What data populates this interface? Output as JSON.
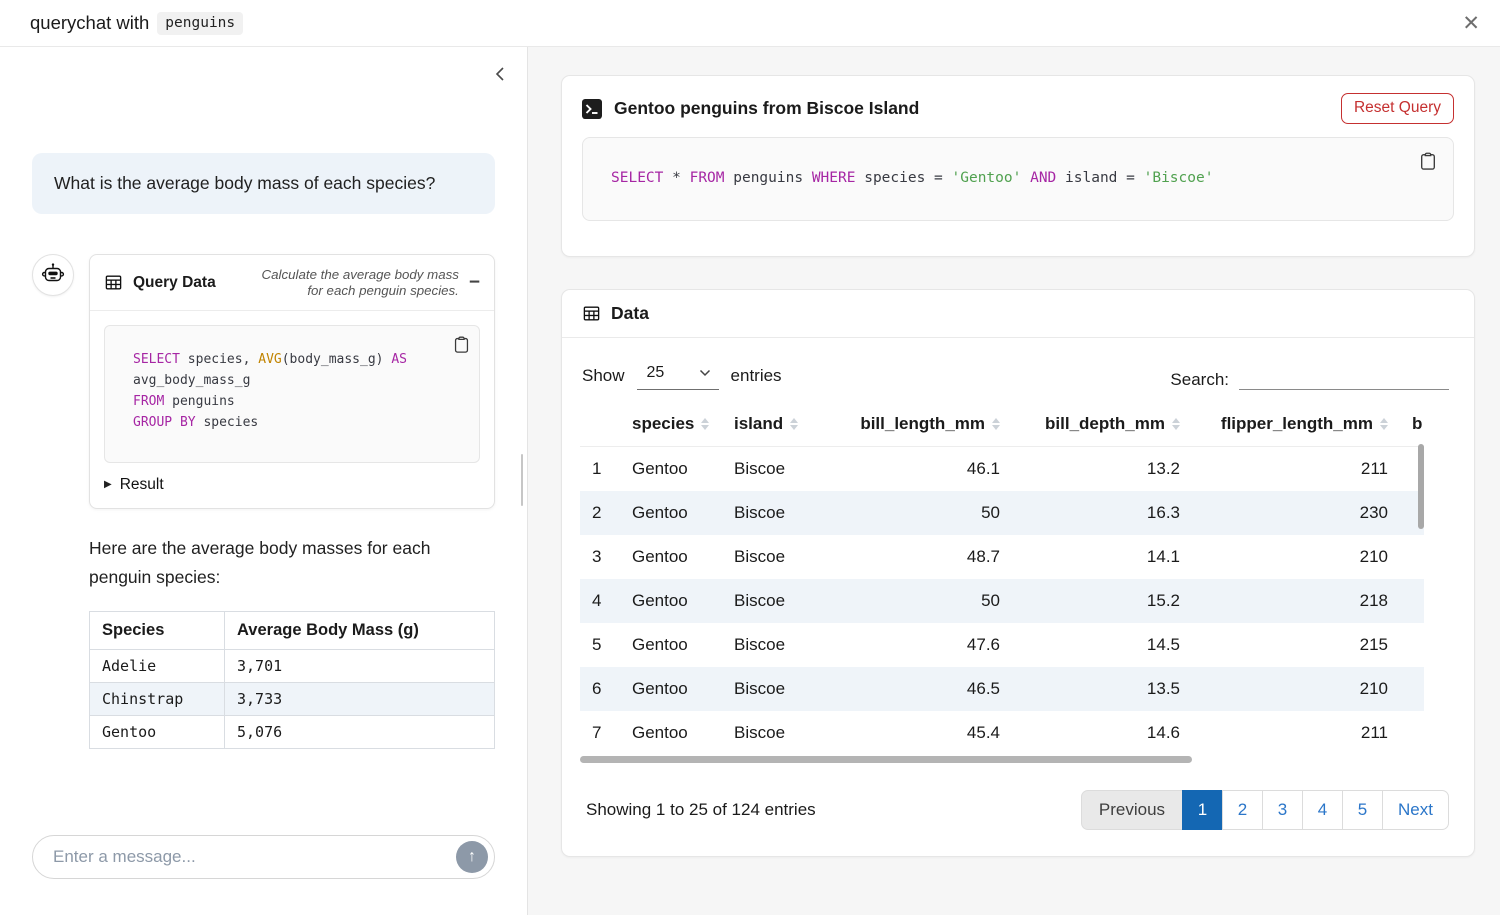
{
  "header": {
    "title_prefix": "querychat with",
    "title_code": "penguins"
  },
  "icons": {
    "close": "✕",
    "tool_collapse": "−",
    "result_caret": "▶",
    "send": "↑",
    "sidebar_collapse": "chevron-left-icon",
    "robot": "robot-icon",
    "table_grid": "table-icon",
    "terminal": "terminal-icon",
    "clipboard": "copy-icon",
    "sort": "sort-arrows-icon",
    "select_chevron": "chevron-down-icon"
  },
  "colors": {
    "accent_blue": "#1467b3",
    "link_blue": "#2b76c9",
    "reset_red": "#c53030",
    "sql_keyword": "#a626a4",
    "sql_function": "#c18401",
    "sql_string": "#50a14f",
    "row_stripe": "#eff4f9",
    "user_bubble": "#edf3f9"
  },
  "sidebar": {
    "user_message": "What is the average body mass of each species?",
    "tool_card": {
      "title": "Query Data",
      "subtitle": "Calculate the average body mass for each penguin species.",
      "sql_tokens": [
        {
          "t": "SELECT",
          "c": "kw"
        },
        {
          "t": " species, ",
          "c": ""
        },
        {
          "t": "AVG",
          "c": "fn"
        },
        {
          "t": "(body_mass_g) ",
          "c": ""
        },
        {
          "t": "AS",
          "c": "kw"
        },
        {
          "t": "\navg_body_mass_g\n",
          "c": ""
        },
        {
          "t": "FROM",
          "c": "kw"
        },
        {
          "t": " penguins\n",
          "c": ""
        },
        {
          "t": "GROUP BY",
          "c": "kw"
        },
        {
          "t": " species",
          "c": ""
        }
      ],
      "result_label": "Result"
    },
    "assistant_text": "Here are the average body masses for each penguin species:",
    "result_table": {
      "headers": [
        "Species",
        "Average Body Mass (g)"
      ],
      "rows": [
        [
          "Adelie",
          "3,701"
        ],
        [
          "Chinstrap",
          "3,733"
        ],
        [
          "Gentoo",
          "5,076"
        ]
      ]
    },
    "input": {
      "placeholder": "Enter a message..."
    }
  },
  "main": {
    "query_card": {
      "title": "Gentoo penguins from Biscoe Island",
      "reset_label": "Reset Query",
      "sql_tokens": [
        {
          "t": "SELECT",
          "c": "kw"
        },
        {
          "t": " * ",
          "c": ""
        },
        {
          "t": "FROM",
          "c": "kw"
        },
        {
          "t": " penguins ",
          "c": ""
        },
        {
          "t": "WHERE",
          "c": "kw"
        },
        {
          "t": " species = ",
          "c": ""
        },
        {
          "t": "'Gentoo'",
          "c": "str"
        },
        {
          "t": " ",
          "c": ""
        },
        {
          "t": "AND",
          "c": "kw"
        },
        {
          "t": " island = ",
          "c": ""
        },
        {
          "t": "'Biscoe'",
          "c": "str"
        }
      ]
    },
    "data_card": {
      "title": "Data",
      "show_label": "Show",
      "page_size": "25",
      "entries_label": "entries",
      "search_label": "Search:",
      "search_value": "",
      "table": {
        "columns": [
          {
            "label": "",
            "align": "left",
            "sortable": false
          },
          {
            "label": "species",
            "align": "left",
            "sortable": true
          },
          {
            "label": "island",
            "align": "left",
            "sortable": true
          },
          {
            "label": "bill_length_mm",
            "align": "right",
            "sortable": true
          },
          {
            "label": "bill_depth_mm",
            "align": "right",
            "sortable": true
          },
          {
            "label": "flipper_length_mm",
            "align": "right",
            "sortable": true
          },
          {
            "label": "b",
            "align": "left",
            "sortable": false
          }
        ],
        "rows": [
          [
            "1",
            "Gentoo",
            "Biscoe",
            "46.1",
            "13.2",
            "211",
            ""
          ],
          [
            "2",
            "Gentoo",
            "Biscoe",
            "50",
            "16.3",
            "230",
            ""
          ],
          [
            "3",
            "Gentoo",
            "Biscoe",
            "48.7",
            "14.1",
            "210",
            ""
          ],
          [
            "4",
            "Gentoo",
            "Biscoe",
            "50",
            "15.2",
            "218",
            ""
          ],
          [
            "5",
            "Gentoo",
            "Biscoe",
            "47.6",
            "14.5",
            "215",
            ""
          ],
          [
            "6",
            "Gentoo",
            "Biscoe",
            "46.5",
            "13.5",
            "210",
            ""
          ],
          [
            "7",
            "Gentoo",
            "Biscoe",
            "45.4",
            "14.6",
            "211",
            ""
          ]
        ]
      },
      "footer": {
        "summary": "Showing 1 to 25 of 124 entries",
        "pagination": [
          {
            "label": "Previous",
            "state": "disabled"
          },
          {
            "label": "1",
            "state": "active"
          },
          {
            "label": "2",
            "state": ""
          },
          {
            "label": "3",
            "state": ""
          },
          {
            "label": "4",
            "state": ""
          },
          {
            "label": "5",
            "state": ""
          },
          {
            "label": "Next",
            "state": ""
          }
        ]
      }
    }
  }
}
